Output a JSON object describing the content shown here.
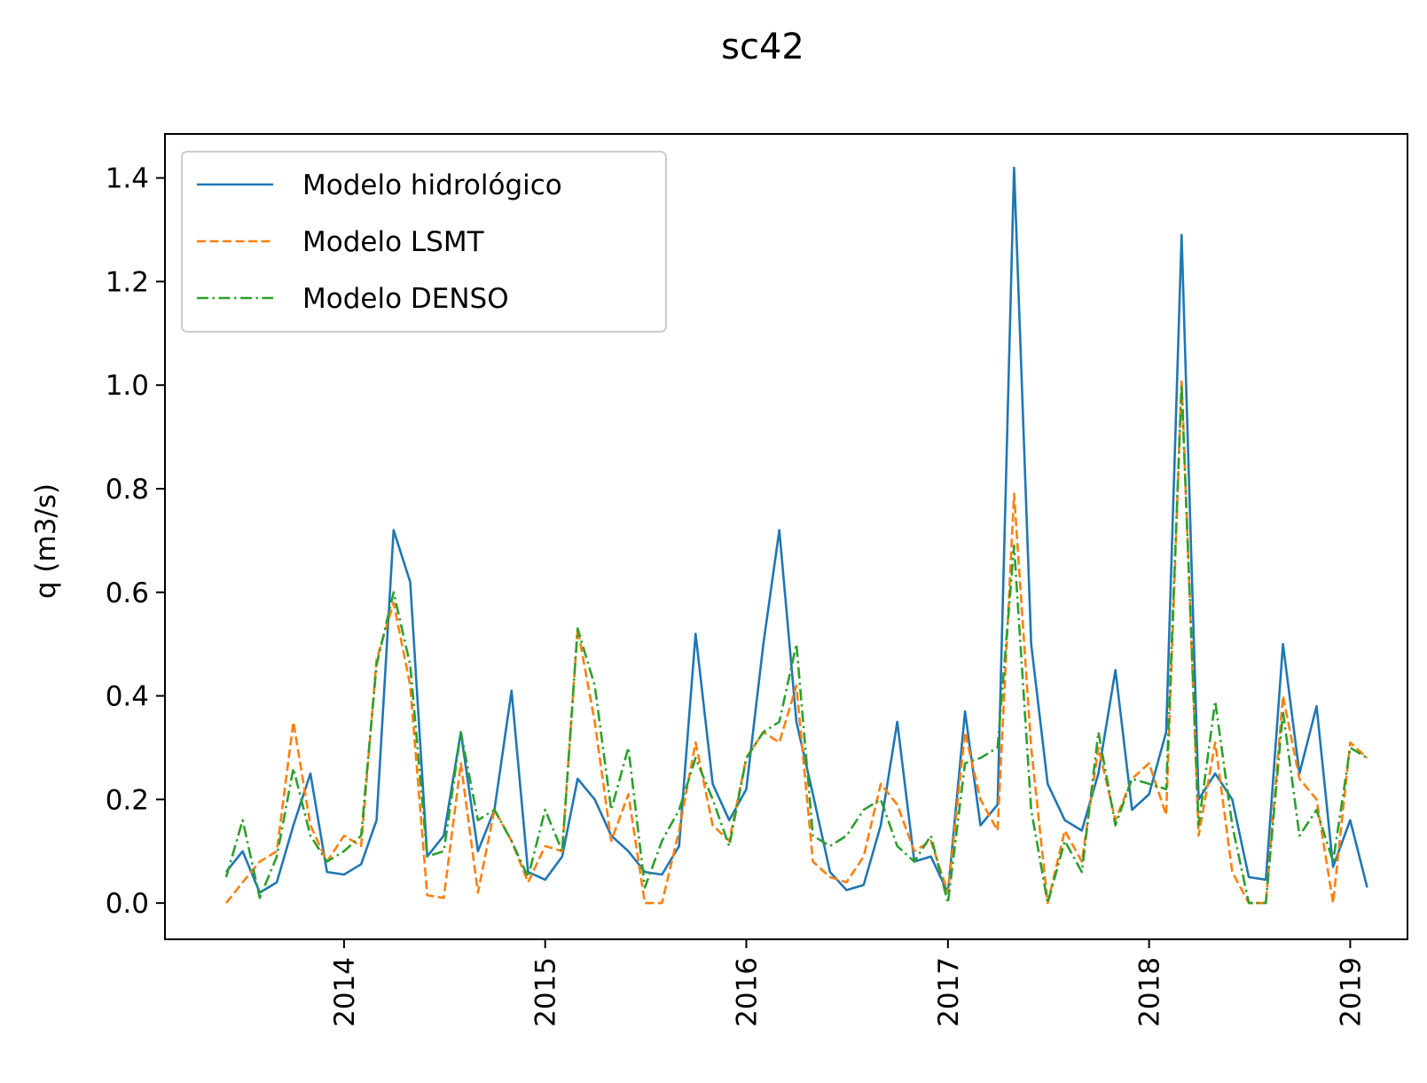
{
  "chart_data": {
    "type": "line",
    "title": "sc42",
    "xlabel": "",
    "ylabel": "q (m3/s)",
    "x_ticks": [
      "2014",
      "2015",
      "2016",
      "2017",
      "2018",
      "2019"
    ],
    "y_ticks": [
      "0.0",
      "0.2",
      "0.4",
      "0.6",
      "0.8",
      "1.0",
      "1.2",
      "1.4"
    ],
    "xlim": [
      "2013-02-10",
      "2019-04-15"
    ],
    "ylim": [
      -0.07,
      1.485
    ],
    "grid": false,
    "legend_position": "upper-left",
    "x": [
      "2013-06",
      "2013-07",
      "2013-08",
      "2013-09",
      "2013-10",
      "2013-11",
      "2013-12",
      "2014-01",
      "2014-02",
      "2014-03",
      "2014-04",
      "2014-05",
      "2014-06",
      "2014-07",
      "2014-08",
      "2014-09",
      "2014-10",
      "2014-11",
      "2014-12",
      "2015-01",
      "2015-02",
      "2015-03",
      "2015-04",
      "2015-05",
      "2015-06",
      "2015-07",
      "2015-08",
      "2015-09",
      "2015-10",
      "2015-11",
      "2015-12",
      "2016-01",
      "2016-02",
      "2016-03",
      "2016-04",
      "2016-05",
      "2016-06",
      "2016-07",
      "2016-08",
      "2016-09",
      "2016-10",
      "2016-11",
      "2016-12",
      "2017-01",
      "2017-02",
      "2017-03",
      "2017-04",
      "2017-05",
      "2017-06",
      "2017-07",
      "2017-08",
      "2017-09",
      "2017-10",
      "2017-11",
      "2017-12",
      "2018-01",
      "2018-02",
      "2018-03",
      "2018-04",
      "2018-05",
      "2018-06",
      "2018-07",
      "2018-08",
      "2018-09",
      "2018-10",
      "2018-11",
      "2018-12",
      "2019-01",
      "2019-02"
    ],
    "series": [
      {
        "name": "Modelo hidrológico",
        "color": "#1f77b4",
        "dash": "solid",
        "values": [
          0.06,
          0.1,
          0.02,
          0.04,
          0.15,
          0.25,
          0.06,
          0.055,
          0.075,
          0.16,
          0.72,
          0.62,
          0.09,
          0.13,
          0.33,
          0.1,
          0.18,
          0.41,
          0.06,
          0.045,
          0.09,
          0.24,
          0.2,
          0.13,
          0.1,
          0.06,
          0.055,
          0.11,
          0.52,
          0.23,
          0.16,
          0.22,
          0.5,
          0.72,
          0.35,
          0.21,
          0.06,
          0.025,
          0.035,
          0.15,
          0.35,
          0.08,
          0.09,
          0.02,
          0.37,
          0.15,
          0.19,
          1.42,
          0.5,
          0.23,
          0.16,
          0.14,
          0.25,
          0.45,
          0.18,
          0.21,
          0.33,
          1.29,
          0.2,
          0.25,
          0.2,
          0.05,
          0.045,
          0.5,
          0.25,
          0.38,
          0.07,
          0.16,
          0.03
        ]
      },
      {
        "name": "Modelo LSMT",
        "color": "#ff7f0e",
        "dash": "dashed",
        "values": [
          0.0,
          0.04,
          0.08,
          0.1,
          0.35,
          0.15,
          0.08,
          0.13,
          0.11,
          0.47,
          0.58,
          0.42,
          0.015,
          0.01,
          0.27,
          0.02,
          0.18,
          0.12,
          0.04,
          0.11,
          0.1,
          0.53,
          0.35,
          0.12,
          0.21,
          0.0,
          0.0,
          0.14,
          0.31,
          0.15,
          0.12,
          0.28,
          0.33,
          0.31,
          0.42,
          0.08,
          0.05,
          0.04,
          0.09,
          0.23,
          0.19,
          0.1,
          0.12,
          0.02,
          0.33,
          0.2,
          0.14,
          0.79,
          0.3,
          0.0,
          0.14,
          0.08,
          0.3,
          0.16,
          0.24,
          0.27,
          0.17,
          1.01,
          0.13,
          0.31,
          0.06,
          0.0,
          0.0,
          0.4,
          0.24,
          0.2,
          0.0,
          0.31,
          0.28
        ]
      },
      {
        "name": "Modelo DENSO",
        "color": "#2ca02c",
        "dash": "dashdot",
        "values": [
          0.05,
          0.16,
          0.01,
          0.09,
          0.26,
          0.13,
          0.08,
          0.1,
          0.13,
          0.46,
          0.6,
          0.46,
          0.09,
          0.1,
          0.33,
          0.16,
          0.18,
          0.12,
          0.05,
          0.18,
          0.1,
          0.53,
          0.42,
          0.18,
          0.3,
          0.03,
          0.12,
          0.18,
          0.28,
          0.2,
          0.11,
          0.28,
          0.33,
          0.35,
          0.5,
          0.13,
          0.11,
          0.13,
          0.18,
          0.2,
          0.11,
          0.08,
          0.13,
          0.0,
          0.27,
          0.28,
          0.3,
          0.69,
          0.18,
          0.0,
          0.12,
          0.06,
          0.33,
          0.15,
          0.24,
          0.23,
          0.22,
          1.0,
          0.15,
          0.39,
          0.15,
          0.0,
          0.0,
          0.37,
          0.13,
          0.18,
          0.08,
          0.3,
          0.28
        ]
      }
    ]
  }
}
